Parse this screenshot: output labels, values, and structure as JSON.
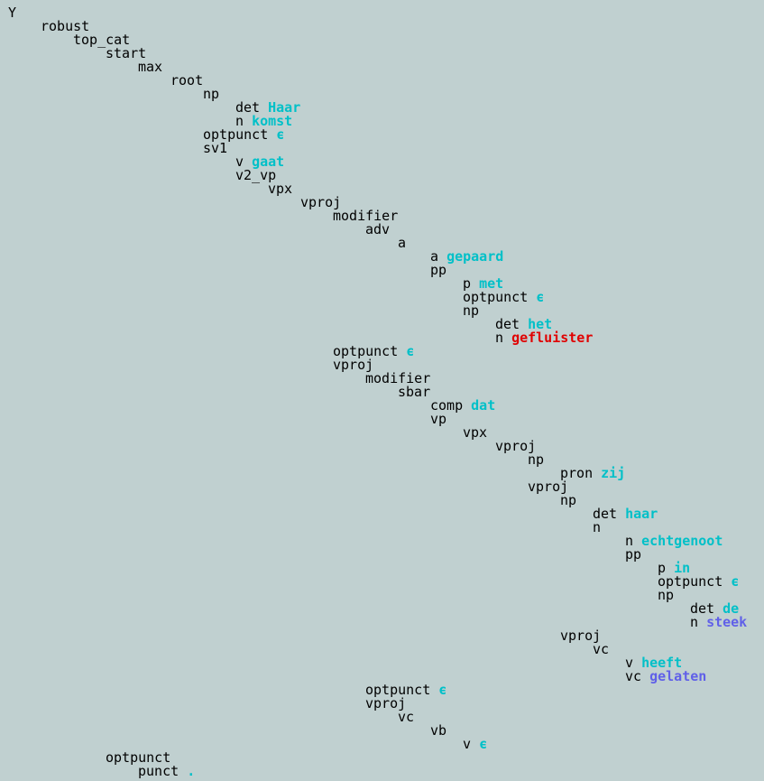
{
  "tree": {
    "word_color": "#00c0c8",
    "label": "Y",
    "children": [
      {
        "label": "robust",
        "children": [
          {
            "label": "top_cat",
            "children": [
              {
                "label": "start",
                "children": [
                  {
                    "label": "max",
                    "children": [
                      {
                        "label": "root",
                        "children": [
                          {
                            "label": "np",
                            "children": [
                              {
                                "label": "det",
                                "word": "Haar"
                              },
                              {
                                "label": "n",
                                "word": "komst"
                              }
                            ]
                          },
                          {
                            "label": "optpunct",
                            "word": "ϵ"
                          },
                          {
                            "label": "sv1",
                            "children": [
                              {
                                "label": "v",
                                "word": "gaat"
                              },
                              {
                                "label": "v2_vp",
                                "children": [
                                  {
                                    "label": "vpx",
                                    "children": [
                                      {
                                        "label": "vproj",
                                        "children": [
                                          {
                                            "label": "modifier",
                                            "children": [
                                              {
                                                "label": "adv",
                                                "children": [
                                                  {
                                                    "label": "a",
                                                    "children": [
                                                      {
                                                        "label": "a",
                                                        "word": "gepaard"
                                                      },
                                                      {
                                                        "label": "pp",
                                                        "children": [
                                                          {
                                                            "label": "p",
                                                            "word": "met"
                                                          },
                                                          {
                                                            "label": "optpunct",
                                                            "word": "ϵ"
                                                          },
                                                          {
                                                            "label": "np",
                                                            "children": [
                                                              {
                                                                "label": "det",
                                                                "word": "het"
                                                              },
                                                              {
                                                                "label": "n",
                                                                "word": "gefluister",
                                                                "color": "#e00000"
                                                              }
                                                            ]
                                                          }
                                                        ]
                                                      }
                                                    ]
                                                  }
                                                ]
                                              }
                                            ]
                                          },
                                          {
                                            "label": "optpunct",
                                            "word": "ϵ"
                                          },
                                          {
                                            "label": "vproj",
                                            "children": [
                                              {
                                                "label": "modifier",
                                                "children": [
                                                  {
                                                    "label": "sbar",
                                                    "children": [
                                                      {
                                                        "label": "comp",
                                                        "word": "dat"
                                                      },
                                                      {
                                                        "label": "vp",
                                                        "children": [
                                                          {
                                                            "label": "vpx",
                                                            "children": [
                                                              {
                                                                "label": "vproj",
                                                                "children": [
                                                                  {
                                                                    "label": "np",
                                                                    "children": [
                                                                      {
                                                                        "label": "pron",
                                                                        "word": "zij"
                                                                      }
                                                                    ]
                                                                  },
                                                                  {
                                                                    "label": "vproj",
                                                                    "children": [
                                                                      {
                                                                        "label": "np",
                                                                        "children": [
                                                                          {
                                                                            "label": "det",
                                                                            "word": "haar"
                                                                          },
                                                                          {
                                                                            "label": "n",
                                                                            "children": [
                                                                              {
                                                                                "label": "n",
                                                                                "word": "echtgenoot"
                                                                              },
                                                                              {
                                                                                "label": "pp",
                                                                                "children": [
                                                                                  {
                                                                                    "label": "p",
                                                                                    "word": "in"
                                                                                  },
                                                                                  {
                                                                                    "label": "optpunct",
                                                                                    "word": "ϵ"
                                                                                  },
                                                                                  {
                                                                                    "label": "np",
                                                                                    "children": [
                                                                                      {
                                                                                        "label": "det",
                                                                                        "word": "de"
                                                                                      },
                                                                                      {
                                                                                        "label": "n",
                                                                                        "word": "steek",
                                                                                        "color": "#6060e8"
                                                                                      }
                                                                                    ]
                                                                                  }
                                                                                ]
                                                                              }
                                                                            ]
                                                                          }
                                                                        ]
                                                                      },
                                                                      {
                                                                        "label": "vproj",
                                                                        "children": [
                                                                          {
                                                                            "label": "vc",
                                                                            "children": [
                                                                              {
                                                                                "label": "v",
                                                                                "word": "heeft"
                                                                              },
                                                                              {
                                                                                "label": "vc",
                                                                                "word": "gelaten",
                                                                                "color": "#6060e8"
                                                                              }
                                                                            ]
                                                                          }
                                                                        ]
                                                                      }
                                                                    ]
                                                                  }
                                                                ]
                                                              }
                                                            ]
                                                          }
                                                        ]
                                                      }
                                                    ]
                                                  }
                                                ]
                                              },
                                              {
                                                "label": "optpunct",
                                                "word": "ϵ"
                                              },
                                              {
                                                "label": "vproj",
                                                "children": [
                                                  {
                                                    "label": "vc",
                                                    "children": [
                                                      {
                                                        "label": "vb",
                                                        "children": [
                                                          {
                                                            "label": "v",
                                                            "word": "ϵ"
                                                          }
                                                        ]
                                                      }
                                                    ]
                                                  }
                                                ]
                                              }
                                            ]
                                          }
                                        ]
                                      }
                                    ]
                                  }
                                ]
                              }
                            ]
                          }
                        ]
                      }
                    ]
                  }
                ]
              },
              {
                "label": "optpunct",
                "children": [
                  {
                    "label": "punct",
                    "word": "."
                  }
                ]
              }
            ]
          }
        ]
      }
    ]
  }
}
